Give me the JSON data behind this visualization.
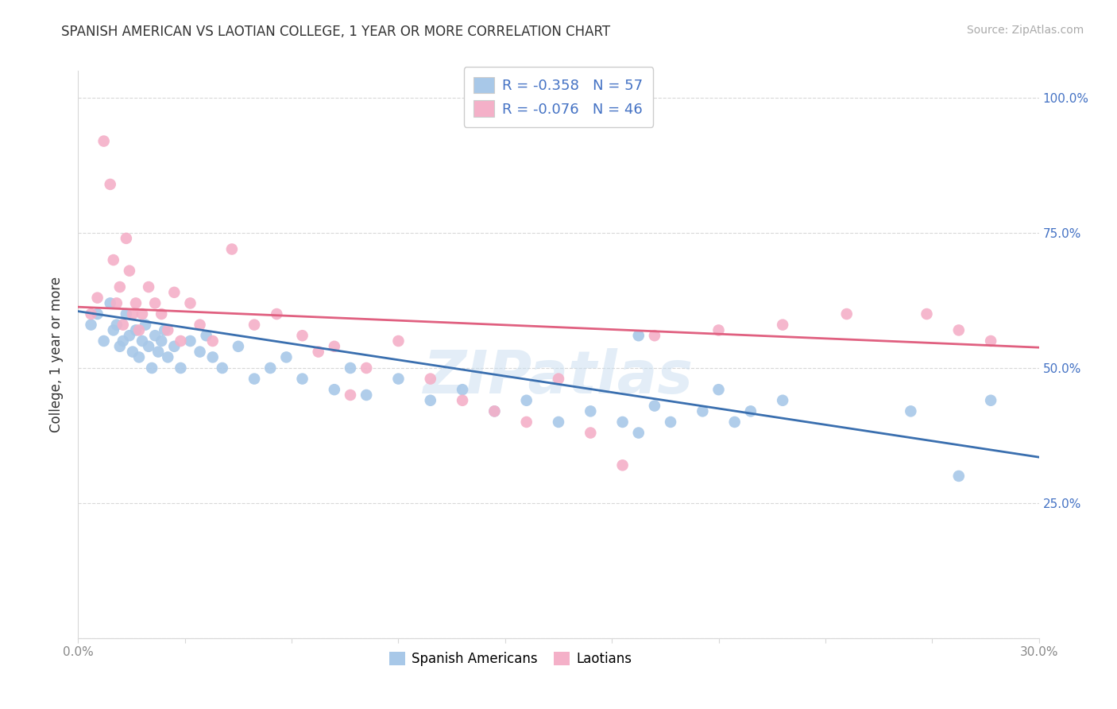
{
  "title": "SPANISH AMERICAN VS LAOTIAN COLLEGE, 1 YEAR OR MORE CORRELATION CHART",
  "source": "Source: ZipAtlas.com",
  "ylabel": "College, 1 year or more",
  "xlim": [
    0.0,
    0.3
  ],
  "ylim": [
    0.0,
    1.05
  ],
  "xticklabels_show": [
    "0.0%",
    "30.0%"
  ],
  "yticks": [
    0.0,
    0.25,
    0.5,
    0.75,
    1.0
  ],
  "yticklabels_right": [
    "",
    "25.0%",
    "50.0%",
    "75.0%",
    "100.0%"
  ],
  "legend_entry1": "R = -0.358   N = 57",
  "legend_entry2": "R = -0.076   N = 46",
  "legend_label1": "Spanish Americans",
  "legend_label2": "Laotians",
  "color_blue": "#a8c8e8",
  "color_pink": "#f4b0c8",
  "line_color_blue": "#3a6faf",
  "line_color_pink": "#e06080",
  "watermark": "ZIPatlas",
  "blue_x": [
    0.004,
    0.006,
    0.008,
    0.01,
    0.011,
    0.012,
    0.013,
    0.014,
    0.015,
    0.016,
    0.017,
    0.018,
    0.019,
    0.02,
    0.021,
    0.022,
    0.023,
    0.024,
    0.025,
    0.026,
    0.027,
    0.028,
    0.03,
    0.032,
    0.035,
    0.038,
    0.04,
    0.042,
    0.045,
    0.05,
    0.055,
    0.06,
    0.065,
    0.07,
    0.08,
    0.085,
    0.09,
    0.1,
    0.11,
    0.12,
    0.13,
    0.14,
    0.15,
    0.16,
    0.175,
    0.185,
    0.2,
    0.21,
    0.22,
    0.17,
    0.175,
    0.18,
    0.195,
    0.205,
    0.26,
    0.275,
    0.285
  ],
  "blue_y": [
    0.58,
    0.6,
    0.55,
    0.62,
    0.57,
    0.58,
    0.54,
    0.55,
    0.6,
    0.56,
    0.53,
    0.57,
    0.52,
    0.55,
    0.58,
    0.54,
    0.5,
    0.56,
    0.53,
    0.55,
    0.57,
    0.52,
    0.54,
    0.5,
    0.55,
    0.53,
    0.56,
    0.52,
    0.5,
    0.54,
    0.48,
    0.5,
    0.52,
    0.48,
    0.46,
    0.5,
    0.45,
    0.48,
    0.44,
    0.46,
    0.42,
    0.44,
    0.4,
    0.42,
    0.38,
    0.4,
    0.46,
    0.42,
    0.44,
    0.4,
    0.56,
    0.43,
    0.42,
    0.4,
    0.42,
    0.3,
    0.44
  ],
  "pink_x": [
    0.004,
    0.006,
    0.008,
    0.01,
    0.011,
    0.012,
    0.013,
    0.014,
    0.015,
    0.016,
    0.017,
    0.018,
    0.019,
    0.02,
    0.022,
    0.024,
    0.026,
    0.028,
    0.03,
    0.032,
    0.035,
    0.038,
    0.042,
    0.048,
    0.055,
    0.062,
    0.07,
    0.08,
    0.09,
    0.1,
    0.11,
    0.12,
    0.13,
    0.14,
    0.15,
    0.16,
    0.17,
    0.18,
    0.2,
    0.22,
    0.24,
    0.265,
    0.275,
    0.285,
    0.075,
    0.085
  ],
  "pink_y": [
    0.6,
    0.63,
    0.92,
    0.84,
    0.7,
    0.62,
    0.65,
    0.58,
    0.74,
    0.68,
    0.6,
    0.62,
    0.57,
    0.6,
    0.65,
    0.62,
    0.6,
    0.57,
    0.64,
    0.55,
    0.62,
    0.58,
    0.55,
    0.72,
    0.58,
    0.6,
    0.56,
    0.54,
    0.5,
    0.55,
    0.48,
    0.44,
    0.42,
    0.4,
    0.48,
    0.38,
    0.32,
    0.56,
    0.57,
    0.58,
    0.6,
    0.6,
    0.57,
    0.55,
    0.53,
    0.45
  ],
  "grid_color": "#d8d8d8",
  "grid_linestyle": "--",
  "tick_color": "#888888",
  "right_ytick_color": "#4472c4",
  "legend_text_color": "#333333",
  "legend_r_color": "#4472c4"
}
